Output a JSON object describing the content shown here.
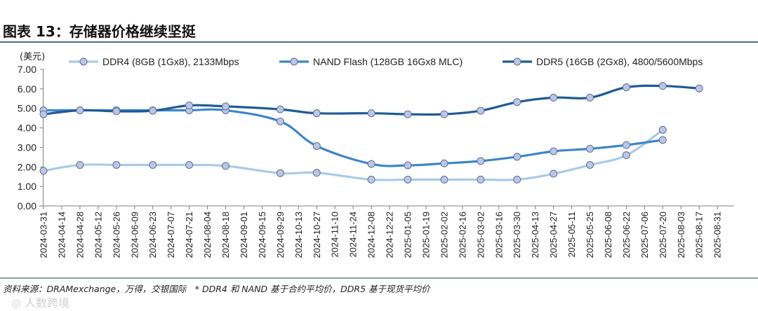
{
  "header": {
    "title": "图表 13：存储器价格继续坚挺",
    "unit": "(美元)"
  },
  "source": {
    "text": "资料来源：DRAMexchange，万得，交银国际　* DDR4 和 NAND 基于合约平均价，DDR5 基于现货平均价"
  },
  "watermark": {
    "text": "◎ 人数跨境"
  },
  "chart_data": {
    "type": "line",
    "title": "图表 13：存储器价格继续坚挺",
    "ylabel": "(美元)",
    "xlabel": "",
    "ylim": [
      0,
      7
    ],
    "yticks": [
      "0.00",
      "1.00",
      "2.00",
      "3.00",
      "4.00",
      "5.00",
      "6.00",
      "7.00"
    ],
    "grid": false,
    "legend_position": "top",
    "categories": [
      "2024-03-31",
      "2024-04-14",
      "2024-04-28",
      "2024-05-12",
      "2024-05-26",
      "2024-06-09",
      "2024-06-23",
      "2024-07-07",
      "2024-07-21",
      "2024-08-04",
      "2024-08-18",
      "2024-09-01",
      "2024-09-15",
      "2024-09-29",
      "2024-10-13",
      "2024-10-27",
      "2024-11-10",
      "2024-11-24",
      "2024-12-08",
      "2024-12-22",
      "2025-01-05",
      "2025-01-19",
      "2025-02-02",
      "2025-02-16",
      "2025-03-02",
      "2025-03-16",
      "2025-03-30",
      "2025-04-13",
      "2025-04-27",
      "2025-05-11",
      "2025-05-25",
      "2025-06-08",
      "2025-06-22",
      "2025-07-06",
      "2025-07-20",
      "2025-08-03",
      "2025-08-17",
      "2025-08-31"
    ],
    "series": [
      {
        "name": "DDR4 (8GB (1Gx8), 2133Mbps",
        "color": "#a9cbe6",
        "points": [
          {
            "x": "2024-03-31",
            "y": 1.8
          },
          {
            "x": "2024-04-28",
            "y": 2.1
          },
          {
            "x": "2024-05-26",
            "y": 2.1
          },
          {
            "x": "2024-06-23",
            "y": 2.1
          },
          {
            "x": "2024-07-21",
            "y": 2.1
          },
          {
            "x": "2024-08-18",
            "y": 2.05
          },
          {
            "x": "2024-09-29",
            "y": 1.68
          },
          {
            "x": "2024-10-27",
            "y": 1.7
          },
          {
            "x": "2024-12-08",
            "y": 1.35
          },
          {
            "x": "2025-01-05",
            "y": 1.35
          },
          {
            "x": "2025-02-02",
            "y": 1.35
          },
          {
            "x": "2025-03-02",
            "y": 1.35
          },
          {
            "x": "2025-03-30",
            "y": 1.35
          },
          {
            "x": "2025-04-27",
            "y": 1.65
          },
          {
            "x": "2025-05-25",
            "y": 2.1
          },
          {
            "x": "2025-06-22",
            "y": 2.6
          },
          {
            "x": "2025-07-20",
            "y": 3.9
          }
        ]
      },
      {
        "name": "NAND Flash (128GB 16Gx8 MLC)",
        "color": "#3e86c8",
        "points": [
          {
            "x": "2024-03-31",
            "y": 4.9
          },
          {
            "x": "2024-04-28",
            "y": 4.9
          },
          {
            "x": "2024-05-26",
            "y": 4.9
          },
          {
            "x": "2024-06-23",
            "y": 4.9
          },
          {
            "x": "2024-07-21",
            "y": 4.9
          },
          {
            "x": "2024-08-18",
            "y": 4.9
          },
          {
            "x": "2024-09-29",
            "y": 4.33
          },
          {
            "x": "2024-10-27",
            "y": 3.07
          },
          {
            "x": "2024-12-08",
            "y": 2.15
          },
          {
            "x": "2025-01-05",
            "y": 2.08
          },
          {
            "x": "2025-02-02",
            "y": 2.18
          },
          {
            "x": "2025-03-02",
            "y": 2.3
          },
          {
            "x": "2025-03-30",
            "y": 2.52
          },
          {
            "x": "2025-04-27",
            "y": 2.8
          },
          {
            "x": "2025-05-25",
            "y": 2.93
          },
          {
            "x": "2025-06-22",
            "y": 3.12
          },
          {
            "x": "2025-07-20",
            "y": 3.38
          }
        ]
      },
      {
        "name": "DDR5 (16GB (2Gx8), 4800/5600Mbps",
        "color": "#1f5a96",
        "points": [
          {
            "x": "2024-03-31",
            "y": 4.7
          },
          {
            "x": "2024-04-28",
            "y": 4.9
          },
          {
            "x": "2024-05-26",
            "y": 4.85
          },
          {
            "x": "2024-06-23",
            "y": 4.88
          },
          {
            "x": "2024-07-21",
            "y": 5.15
          },
          {
            "x": "2024-08-18",
            "y": 5.1
          },
          {
            "x": "2024-09-29",
            "y": 4.95
          },
          {
            "x": "2024-10-27",
            "y": 4.75
          },
          {
            "x": "2024-12-08",
            "y": 4.75
          },
          {
            "x": "2025-01-05",
            "y": 4.7
          },
          {
            "x": "2025-02-02",
            "y": 4.7
          },
          {
            "x": "2025-03-02",
            "y": 4.88
          },
          {
            "x": "2025-03-30",
            "y": 5.32
          },
          {
            "x": "2025-04-27",
            "y": 5.55
          },
          {
            "x": "2025-05-25",
            "y": 5.55
          },
          {
            "x": "2025-06-22",
            "y": 6.08
          },
          {
            "x": "2025-07-20",
            "y": 6.15
          },
          {
            "x": "2025-08-17",
            "y": 6.02
          }
        ]
      }
    ]
  }
}
